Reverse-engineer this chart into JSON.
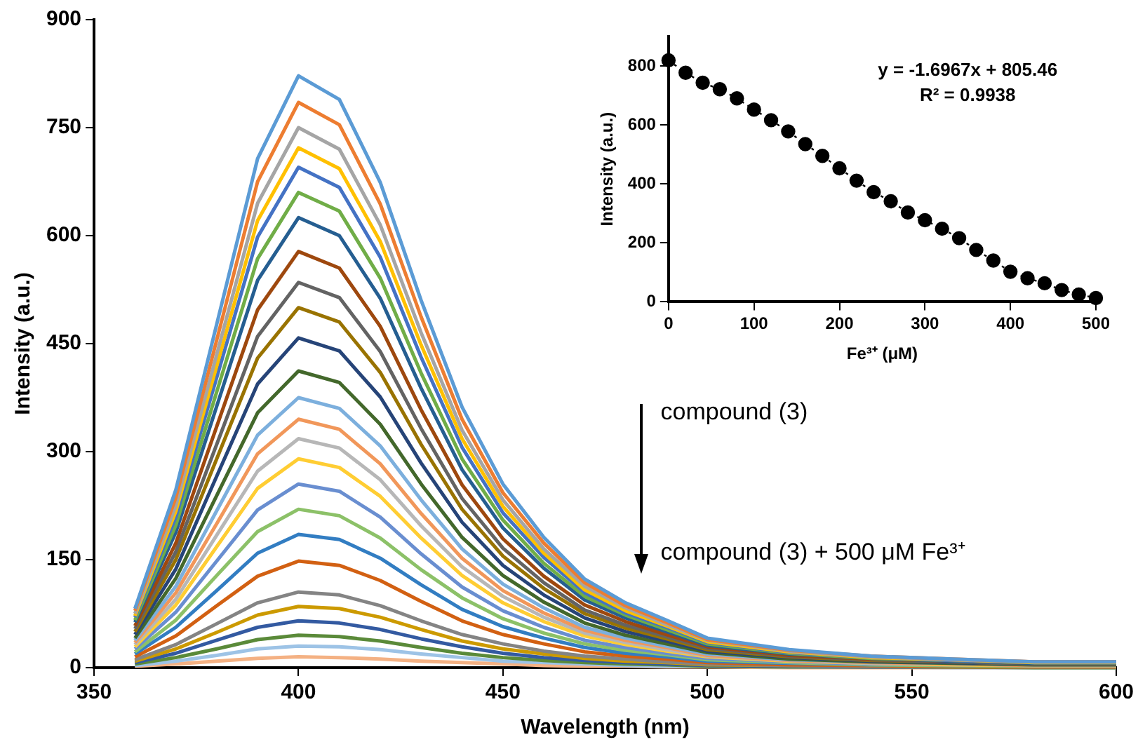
{
  "chart_data": [
    {
      "type": "line",
      "xlabel": "Wavelength (nm)",
      "ylabel": "Intensity (a.u.)",
      "x": [
        360,
        370,
        380,
        390,
        400,
        410,
        420,
        430,
        440,
        450,
        460,
        470,
        480,
        490,
        500,
        520,
        540,
        560,
        580,
        600
      ],
      "xlim": [
        350,
        600
      ],
      "xticks": [
        350,
        400,
        450,
        500,
        550,
        600
      ],
      "ylim": [
        0,
        900
      ],
      "yticks": [
        0,
        150,
        300,
        450,
        600,
        750,
        900
      ],
      "annotations": [
        "compound (3)",
        "compound (3) + 500 μM Fe³⁺"
      ],
      "series": [
        {
          "color": "#5b9bd5",
          "values": [
            82,
            247,
            477,
            707,
            822,
            789,
            674,
            510,
            362,
            255,
            181,
            123,
            90,
            66,
            41,
            25,
            16,
            12,
            8,
            8
          ]
        },
        {
          "color": "#ed7d31",
          "values": [
            79,
            236,
            455,
            675,
            785,
            754,
            644,
            487,
            345,
            243,
            173,
            118,
            86,
            63,
            39,
            24,
            16,
            12,
            8,
            8
          ]
        },
        {
          "color": "#a5a5a5",
          "values": [
            75,
            225,
            435,
            645,
            750,
            720,
            615,
            465,
            330,
            233,
            165,
            113,
            83,
            60,
            38,
            23,
            15,
            11,
            8,
            8
          ]
        },
        {
          "color": "#ffc000",
          "values": [
            72,
            217,
            419,
            621,
            722,
            693,
            592,
            448,
            318,
            224,
            159,
            108,
            79,
            58,
            36,
            22,
            14,
            11,
            7,
            7
          ]
        },
        {
          "color": "#4472c4",
          "values": [
            70,
            209,
            403,
            598,
            695,
            667,
            570,
            431,
            306,
            215,
            153,
            104,
            76,
            56,
            35,
            21,
            14,
            10,
            7,
            7
          ]
        },
        {
          "color": "#70ad47",
          "values": [
            66,
            198,
            383,
            568,
            660,
            634,
            541,
            409,
            290,
            205,
            145,
            99,
            73,
            53,
            33,
            20,
            13,
            10,
            7,
            7
          ]
        },
        {
          "color": "#255e91",
          "values": [
            63,
            188,
            363,
            538,
            625,
            600,
            513,
            388,
            275,
            194,
            138,
            94,
            69,
            50,
            31,
            19,
            13,
            9,
            6,
            6
          ]
        },
        {
          "color": "#9e480e",
          "values": [
            58,
            173,
            335,
            497,
            578,
            555,
            474,
            358,
            254,
            179,
            127,
            87,
            64,
            46,
            29,
            17,
            12,
            9,
            6,
            6
          ]
        },
        {
          "color": "#636363",
          "values": [
            54,
            161,
            310,
            460,
            535,
            514,
            439,
            332,
            235,
            166,
            118,
            80,
            59,
            43,
            27,
            16,
            11,
            8,
            5,
            5
          ]
        },
        {
          "color": "#997300",
          "values": [
            50,
            150,
            290,
            430,
            500,
            480,
            410,
            310,
            220,
            155,
            110,
            75,
            55,
            40,
            25,
            15,
            10,
            8,
            5,
            5
          ]
        },
        {
          "color": "#264478",
          "values": [
            46,
            137,
            266,
            394,
            458,
            440,
            376,
            284,
            202,
            142,
            101,
            69,
            50,
            37,
            23,
            14,
            9,
            7,
            5,
            5
          ]
        },
        {
          "color": "#43682b",
          "values": [
            41,
            124,
            239,
            354,
            412,
            396,
            338,
            255,
            181,
            128,
            91,
            62,
            45,
            33,
            21,
            12,
            8,
            6,
            4,
            4
          ]
        },
        {
          "color": "#7cafdd",
          "values": [
            38,
            113,
            218,
            323,
            375,
            360,
            308,
            233,
            165,
            116,
            83,
            56,
            41,
            30,
            19,
            11,
            8,
            6,
            4,
            4
          ]
        },
        {
          "color": "#f1975a",
          "values": [
            35,
            104,
            200,
            297,
            345,
            331,
            283,
            214,
            152,
            107,
            76,
            52,
            38,
            28,
            17,
            10,
            7,
            5,
            3,
            3
          ]
        },
        {
          "color": "#b7b7b7",
          "values": [
            32,
            95,
            184,
            273,
            318,
            305,
            261,
            197,
            140,
            99,
            70,
            48,
            35,
            25,
            16,
            10,
            6,
            5,
            3,
            3
          ]
        },
        {
          "color": "#ffcd33",
          "values": [
            29,
            87,
            168,
            249,
            290,
            278,
            238,
            180,
            128,
            90,
            64,
            44,
            32,
            23,
            15,
            9,
            6,
            4,
            3,
            3
          ]
        },
        {
          "color": "#698ed0",
          "values": [
            26,
            77,
            148,
            219,
            255,
            245,
            209,
            158,
            112,
            79,
            56,
            38,
            28,
            20,
            13,
            8,
            5,
            4,
            3,
            3
          ]
        },
        {
          "color": "#8cc168",
          "values": [
            22,
            66,
            128,
            189,
            220,
            211,
            180,
            136,
            97,
            68,
            48,
            33,
            24,
            18,
            11,
            7,
            4,
            3,
            2,
            2
          ]
        },
        {
          "color": "#327dc2",
          "values": [
            19,
            56,
            107,
            159,
            185,
            178,
            152,
            115,
            81,
            57,
            41,
            28,
            20,
            15,
            9,
            6,
            4,
            3,
            2,
            2
          ]
        },
        {
          "color": "#d26012",
          "values": [
            15,
            44,
            86,
            127,
            148,
            142,
            121,
            92,
            65,
            46,
            33,
            22,
            16,
            12,
            7,
            4,
            3,
            2,
            1,
            1
          ]
        },
        {
          "color": "#848484",
          "values": [
            11,
            32,
            61,
            90,
            105,
            101,
            86,
            65,
            46,
            33,
            23,
            16,
            12,
            8,
            5,
            3,
            2,
            2,
            1,
            1
          ]
        },
        {
          "color": "#cc9a00",
          "values": [
            9,
            26,
            49,
            73,
            85,
            82,
            70,
            53,
            37,
            26,
            19,
            13,
            9,
            7,
            4,
            3,
            2,
            1,
            1,
            1
          ]
        },
        {
          "color": "#335aa1",
          "values": [
            7,
            20,
            38,
            56,
            65,
            62,
            53,
            40,
            29,
            20,
            14,
            10,
            7,
            5,
            3,
            2,
            1,
            1,
            1,
            1
          ]
        },
        {
          "color": "#5a8a39",
          "values": [
            5,
            14,
            26,
            39,
            45,
            43,
            37,
            28,
            20,
            14,
            10,
            7,
            5,
            4,
            2,
            1,
            1,
            1,
            0,
            0
          ]
        },
        {
          "color": "#9dc3e6",
          "values": [
            3,
            9,
            17,
            26,
            30,
            29,
            25,
            19,
            14,
            9,
            7,
            5,
            3,
            2,
            2,
            1,
            1,
            0,
            0,
            0
          ]
        },
        {
          "color": "#f4b183",
          "values": [
            2,
            5,
            9,
            13,
            15,
            14,
            12,
            9,
            7,
            5,
            3,
            2,
            2,
            1,
            1,
            0,
            0,
            0,
            0,
            0
          ]
        }
      ]
    },
    {
      "type": "line",
      "xlabel": "Fe³⁺ (μM)",
      "ylabel": "Intensity (a.u.)",
      "x": [
        0,
        20,
        40,
        60,
        80,
        100,
        120,
        140,
        160,
        180,
        200,
        220,
        240,
        260,
        280,
        300,
        320,
        340,
        360,
        380,
        400,
        420,
        440,
        460,
        480,
        500
      ],
      "xlim": [
        0,
        500
      ],
      "xticks": [
        0,
        100,
        200,
        300,
        400,
        500
      ],
      "ylim": [
        0,
        900
      ],
      "yticks": [
        0,
        200,
        400,
        600,
        800
      ],
      "marker": "circle",
      "line_style": "dotted",
      "annotations": [
        "y = -1.6967x + 805.46",
        "R² = 0.9938"
      ],
      "series": [
        {
          "color": "#000000",
          "values": [
            819,
            777,
            743,
            721,
            690,
            652,
            616,
            578,
            535,
            495,
            453,
            411,
            372,
            341,
            303,
            277,
            248,
            216,
            176,
            140,
            102,
            80,
            63,
            40,
            25,
            13
          ]
        }
      ]
    }
  ]
}
